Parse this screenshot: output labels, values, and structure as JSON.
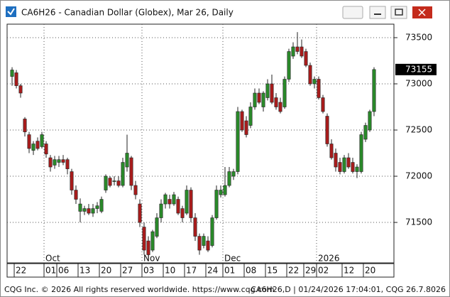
{
  "chart_data": {
    "type": "candlestick",
    "title": "CA6H26 - Canadian Dollar (Globex), Mar 26, Daily",
    "open": [
      73080,
      73120,
      72980,
      72620,
      72450,
      72280,
      72380,
      72320,
      72350,
      72200,
      72120,
      72150,
      72180,
      72180,
      72050,
      71850,
      71620,
      71620,
      71650,
      71600,
      71650,
      71620,
      71850,
      71980,
      71950,
      71950,
      71900,
      72100,
      72200,
      71900,
      71700,
      71450,
      71300,
      71200,
      71350,
      71550,
      71700,
      71750,
      71700,
      71750,
      71650,
      71600,
      71850,
      71550,
      71350,
      71250,
      71300,
      71250,
      71550,
      71800,
      71800,
      71900,
      72000,
      72050,
      72700,
      72600,
      72550,
      72750,
      72900,
      72750,
      72850,
      73000,
      72850,
      72800,
      72750,
      73050,
      73300,
      73400,
      73400,
      73350,
      73200,
      73000,
      73050,
      72850,
      72650,
      72350,
      72250,
      72150,
      72050,
      72200,
      72150,
      72050,
      72050,
      72400,
      72500,
      72700
    ],
    "high": [
      73180,
      73150,
      73000,
      72640,
      72480,
      72380,
      72420,
      72480,
      72380,
      72230,
      72220,
      72220,
      72230,
      72200,
      72080,
      71900,
      71760,
      71680,
      71700,
      71700,
      71720,
      71780,
      72020,
      72000,
      72000,
      72000,
      72200,
      72450,
      72220,
      71950,
      71750,
      71500,
      71350,
      71420,
      71600,
      71750,
      71820,
      71800,
      71830,
      71780,
      71680,
      71900,
      71880,
      71600,
      71380,
      71380,
      71350,
      71580,
      71900,
      71900,
      72100,
      72100,
      72080,
      72750,
      72720,
      72650,
      72800,
      72950,
      72950,
      72920,
      73050,
      73100,
      72900,
      72850,
      73080,
      73380,
      73450,
      73560,
      73480,
      73380,
      73230,
      73080,
      73080,
      72880,
      72680,
      72400,
      72300,
      72200,
      72230,
      72250,
      72200,
      72130,
      72480,
      72580,
      72720,
      73180
    ],
    "low": [
      72980,
      72950,
      72850,
      72430,
      72250,
      72230,
      72280,
      72300,
      72200,
      72050,
      72080,
      72100,
      72120,
      72020,
      71800,
      71700,
      71500,
      71580,
      71580,
      71560,
      71600,
      71600,
      71820,
      71880,
      71900,
      71880,
      71880,
      72050,
      71850,
      71750,
      71450,
      71150,
      71100,
      71180,
      71330,
      71500,
      71650,
      71650,
      71680,
      71580,
      71500,
      71580,
      71500,
      71300,
      71150,
      71220,
      71180,
      71230,
      71530,
      71770,
      71780,
      71880,
      71960,
      72020,
      72480,
      72420,
      72520,
      72720,
      72780,
      72700,
      72820,
      72780,
      72720,
      72680,
      72730,
      73020,
      73270,
      73320,
      73280,
      73180,
      72980,
      72950,
      72830,
      72680,
      72320,
      72180,
      72050,
      72020,
      72030,
      72080,
      72030,
      71980,
      72030,
      72370,
      72480,
      72650
    ],
    "close": [
      73150,
      72980,
      72900,
      72480,
      72300,
      72350,
      72300,
      72450,
      72240,
      72100,
      72180,
      72180,
      72150,
      72080,
      71850,
      71750,
      71700,
      71650,
      71600,
      71650,
      71680,
      71750,
      72000,
      71900,
      71950,
      71900,
      72150,
      72250,
      71900,
      71800,
      71500,
      71200,
      71150,
      71400,
      71550,
      71700,
      71800,
      71700,
      71800,
      71600,
      71550,
      71850,
      71550,
      71350,
      71200,
      71350,
      71200,
      71550,
      71850,
      71850,
      71900,
      72050,
      72050,
      72700,
      72500,
      72450,
      72750,
      72900,
      72800,
      72900,
      73000,
      72800,
      72750,
      72700,
      73050,
      73350,
      73400,
      73350,
      73300,
      73200,
      73000,
      73050,
      72850,
      72700,
      72350,
      72200,
      72100,
      72050,
      72200,
      72100,
      72050,
      72100,
      72450,
      72550,
      72700,
      73155
    ],
    "up_color": "#2a8a2a",
    "down_color": "#a81c1c",
    "last_price": 73155,
    "ylim": [
      71062,
      73646
    ],
    "yticks": [
      71500,
      72000,
      72500,
      73000,
      73500
    ],
    "xlim": [
      -1.17,
      89.67
    ],
    "xticks": [
      {
        "value": 1,
        "label": "22"
      },
      {
        "value": 8,
        "label": "01"
      },
      {
        "value": 11,
        "label": "06"
      },
      {
        "value": 16,
        "label": "13"
      },
      {
        "value": 21,
        "label": "20"
      },
      {
        "value": 26,
        "label": "27"
      },
      {
        "value": 31,
        "label": "03"
      },
      {
        "value": 36,
        "label": "10"
      },
      {
        "value": 41,
        "label": "17"
      },
      {
        "value": 46,
        "label": "24"
      },
      {
        "value": 50,
        "label": "01"
      },
      {
        "value": 55,
        "label": "08"
      },
      {
        "value": 60,
        "label": "15"
      },
      {
        "value": 65,
        "label": "22"
      },
      {
        "value": 69,
        "label": "29"
      },
      {
        "value": 72,
        "label": "02"
      },
      {
        "value": 78,
        "label": "12"
      },
      {
        "value": 83,
        "label": "20"
      }
    ],
    "month_ticks": [
      {
        "value": 8,
        "label": "Oct"
      },
      {
        "value": 31,
        "label": "Nov"
      },
      {
        "value": 50,
        "label": "Dec"
      },
      {
        "value": 72,
        "label": "2026"
      }
    ],
    "grid": true
  },
  "footer": {
    "left": "CQG Inc. © 2026 All rights reserved worldwide. https://www.cqg.com",
    "right": "CA6H26,D | 01/24/2026 17:04:01, CQG 26.7.8026"
  }
}
